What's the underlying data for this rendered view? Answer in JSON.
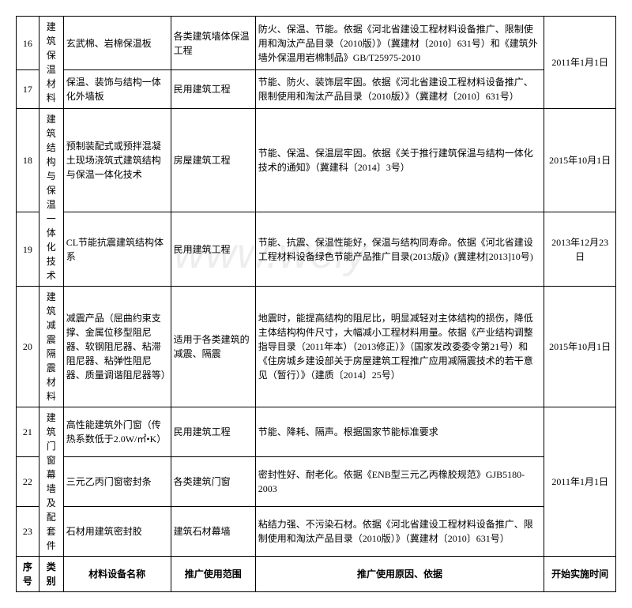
{
  "watermark": "www.weiy",
  "headers": {
    "num": "序号",
    "cat": "类别",
    "name": "材料设备名称",
    "scope": "推广使用范围",
    "reason": "推广使用原因、依据",
    "date": "开始实施时间"
  },
  "rows": [
    {
      "num": "16",
      "name": "玄武棉、岩棉保温板",
      "scope": "各类建筑墙体保温工程",
      "reason": "防火、保温、节能。依据《河北省建设工程材料设备推广、限制使用和淘汰产品目录（2010版）》（冀建材〔2010〕631号）和《建筑外墙外保温用岩棉制品》GB/T25975-2010"
    },
    {
      "num": "17",
      "name": "保温、装饰与结构一体化外墙板",
      "scope": "民用建筑工程",
      "reason": "节能、防火、装饰层牢固。依据《河北省建设工程材料设备推广、限制使用和淘汰产品目录（2010版）》（冀建材〔2010〕631号）"
    },
    {
      "num": "18",
      "name": "预制装配式或预拌混凝土现场浇筑式建筑结构与保温一体化技术",
      "scope": "房屋建筑工程",
      "reason": "节能、保温、保温层牢固。依据《关于推行建筑保温与结构一体化技术的通知》（冀建科〔2014〕3号）"
    },
    {
      "num": "19",
      "name": "CL节能抗震建筑结构体系",
      "scope": "民用建筑工程",
      "reason": "节能、抗震、保温性能好，保温与结构同寿命。依据《河北省建设工程材料设备绿色节能产品推广目录(2013版)》(冀建材[2013]10号)"
    },
    {
      "num": "20",
      "name": "减震产品（屈曲约束支撑、金属位移型阻尼器、软钢阻尼器、粘滞阻尼器、粘弹性阻尼器、质量调谐阻尼器等）",
      "scope": "适用于各类建筑的减震、隔震",
      "reason": "地震时，能提高结构的阻尼比，明显减轻对主体结构的损伤，降低主体结构构件尺寸，大幅减小工程材料用量。依据《产业结构调整指导目录（2011年本）（2013修正）》（国家发改委委令第21号）和《住房城乡建设部关于房屋建筑工程推广应用减隔震技术的若干意见（暂行）》（建质〔2014〕25号）"
    },
    {
      "num": "21",
      "name": "高性能建筑外门窗（传热系数低于2.0W/㎡•K）",
      "scope": "民用建筑工程",
      "reason": "节能、降耗、隔声。根据国家节能标准要求"
    },
    {
      "num": "22",
      "name": "三元乙丙门窗密封条",
      "scope": "各类建筑门窗",
      "reason": "密封性好、耐老化。依据《ENB型三元乙丙橡胶规范》GJB5180-2003"
    },
    {
      "num": "23",
      "name": "石材用建筑密封胶",
      "scope": "建筑石材幕墙",
      "reason": "粘结力强、不污染石材。依据《河北省建设工程材料设备推广、限制使用和淘汰产品目录（2010版）》（冀建材〔2010〕631号）"
    }
  ],
  "cats": {
    "g1": "建筑保温材料",
    "g2": "建筑结构与保温一体化技术",
    "g3": "建筑减震隔震材料",
    "g4": "建筑门窗幕墙及配套件"
  },
  "dates": {
    "d1": "2011年1月1日",
    "d2": "2015年10月1日",
    "d3": "2013年12月23日",
    "d4": "2015年10月1日",
    "d5": "2011年1月1日"
  }
}
